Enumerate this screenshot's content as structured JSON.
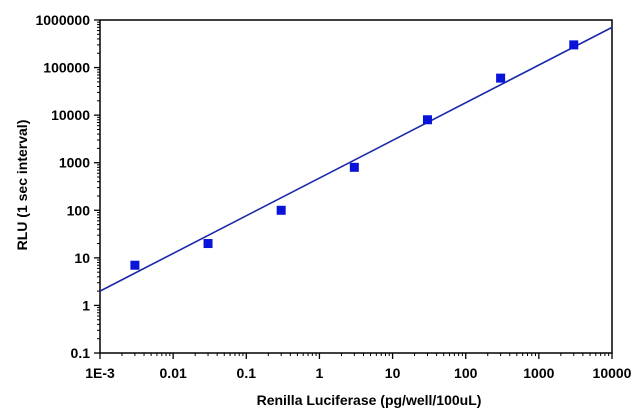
{
  "chart_data": {
    "type": "scatter",
    "title": "",
    "xlabel": "Renilla Luciferase (pg/well/100uL)",
    "ylabel": "RLU (1 sec interval)",
    "x_scale": "log",
    "y_scale": "log",
    "xlim": [
      0.001,
      10000
    ],
    "ylim": [
      0.1,
      1000000
    ],
    "grid": false,
    "legend": "none",
    "x_tick_labels": [
      {
        "value": 0.001,
        "label": "1E-3"
      },
      {
        "value": 0.01,
        "label": "0.01"
      },
      {
        "value": 0.1,
        "label": "0.1"
      },
      {
        "value": 1,
        "label": "1"
      },
      {
        "value": 10,
        "label": "10"
      },
      {
        "value": 100,
        "label": "100"
      },
      {
        "value": 1000,
        "label": "1000"
      },
      {
        "value": 10000,
        "label": "10000"
      }
    ],
    "y_tick_labels": [
      {
        "value": 0.1,
        "label": "0.1"
      },
      {
        "value": 1,
        "label": "1"
      },
      {
        "value": 10,
        "label": "10"
      },
      {
        "value": 100,
        "label": "100"
      },
      {
        "value": 1000,
        "label": "1000"
      },
      {
        "value": 10000,
        "label": "10000"
      },
      {
        "value": 100000,
        "label": "100000"
      },
      {
        "value": 1000000,
        "label": "1000000"
      }
    ],
    "series": [
      {
        "x": [
          0.003,
          0.03,
          0.3,
          3,
          30,
          300,
          3000
        ],
        "y": [
          7,
          20,
          100,
          800,
          8000,
          60000,
          300000
        ],
        "color": "#0a14d8",
        "marker": "square"
      }
    ],
    "fit_line": {
      "x": [
        0.001,
        10000
      ],
      "y": [
        2,
        700000
      ],
      "color": "#1a2aa8"
    }
  }
}
